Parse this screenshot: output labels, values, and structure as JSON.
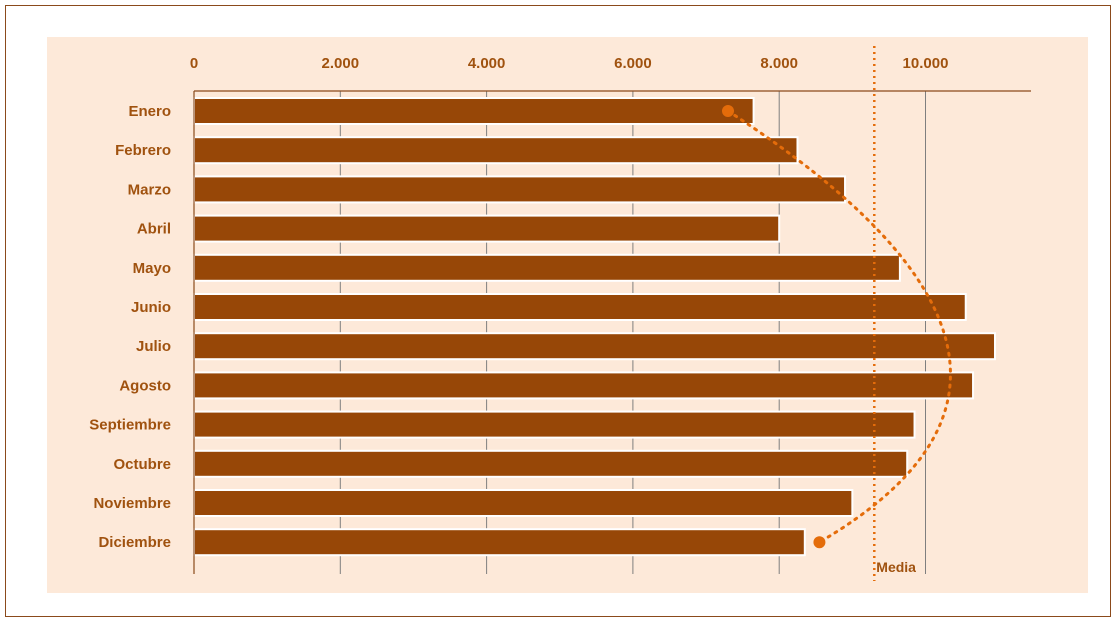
{
  "chart_data": {
    "type": "bar",
    "orientation": "horizontal",
    "categories": [
      "Enero",
      "Febrero",
      "Marzo",
      "Abril",
      "Mayo",
      "Junio",
      "Julio",
      "Agosto",
      "Septiembre",
      "Octubre",
      "Noviembre",
      "Diciembre"
    ],
    "values": [
      7650,
      8250,
      8900,
      8000,
      9650,
      10550,
      10950,
      10650,
      9850,
      9750,
      9000,
      8350
    ],
    "x_ticks": [
      "0",
      "2.000",
      "4.000",
      "6.000",
      "8.000",
      "10.000"
    ],
    "x_tick_values": [
      0,
      2000,
      4000,
      6000,
      8000,
      10000
    ],
    "xlim": [
      0,
      11500
    ],
    "axis_position": "top",
    "grid": "vertical",
    "mean": 9300,
    "mean_label": "Media",
    "trend": {
      "style": "dotted",
      "start_category": "Enero",
      "start_value": 7300,
      "end_category": "Diciembre",
      "end_value": 8550,
      "peak_category": "Julio",
      "peak_value": 10300
    },
    "colors": {
      "bar": "#974707",
      "bar_edge": "#ffffff",
      "plot_bg": "#FDE9D9",
      "grid": "#7F7F7F",
      "axis": "#8B4A1B",
      "text": "#A0520F",
      "mean_line": "#E46C0A",
      "trend": "#E46C0A",
      "frame": "#8B4A1B"
    }
  }
}
